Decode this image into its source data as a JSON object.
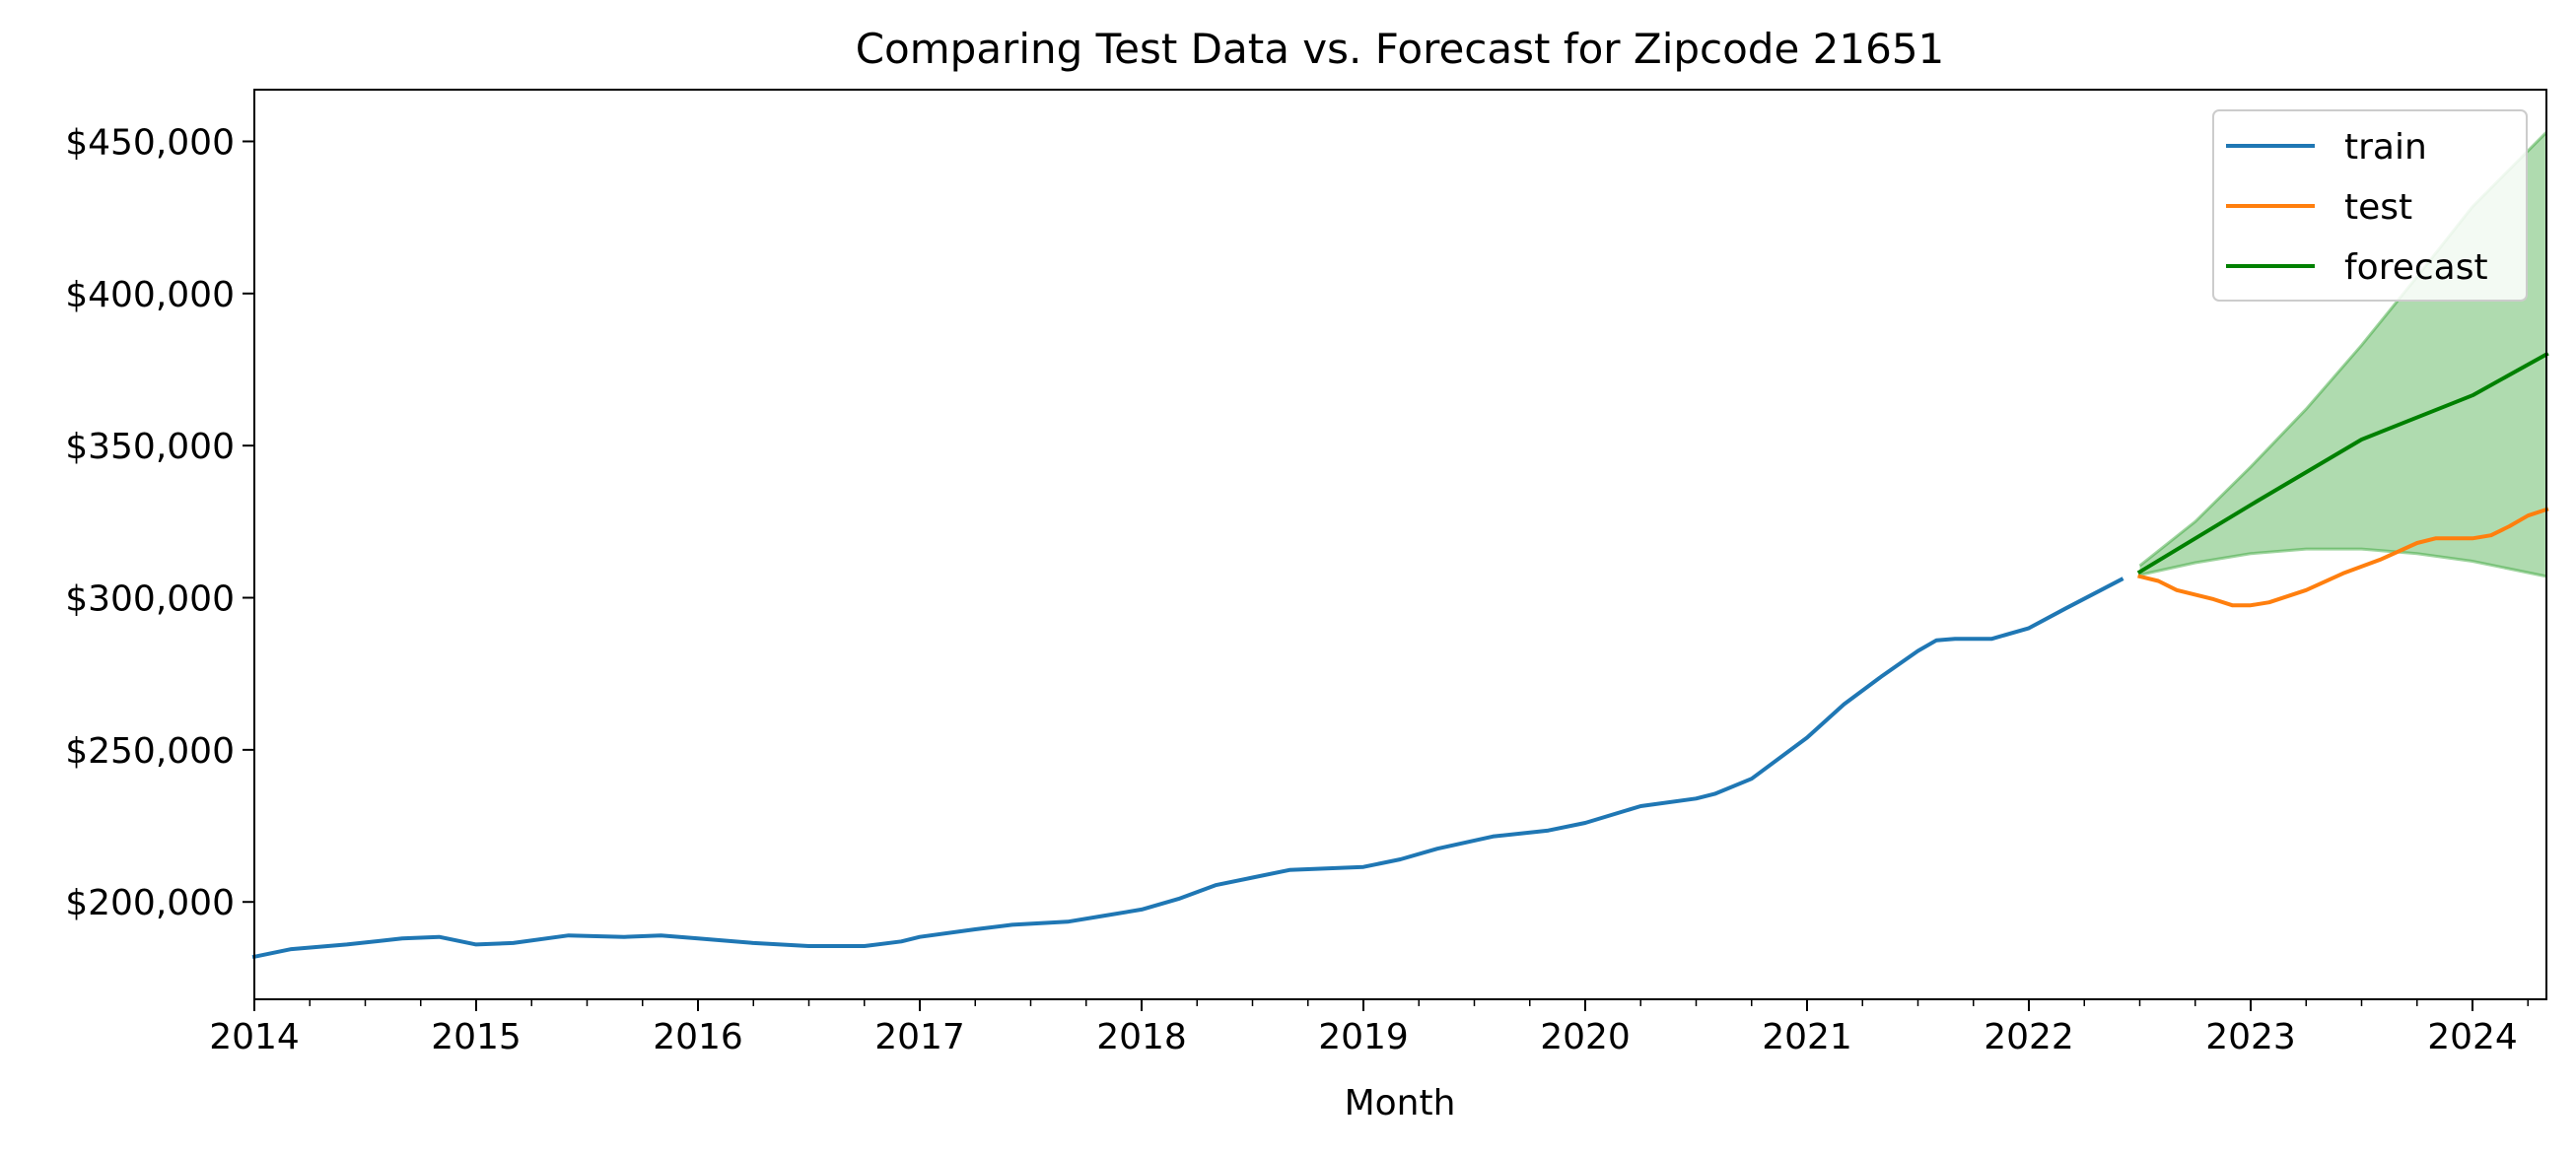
{
  "chart_data": {
    "type": "line",
    "title": "Comparing Test Data vs. Forecast for Zipcode 21651",
    "xlabel": "Month",
    "ylabel": "",
    "x_axis": "date",
    "xlim": [
      "2014-01",
      "2024-05"
    ],
    "ylim": [
      168000,
      467000
    ],
    "y_ticks": [
      200000,
      250000,
      300000,
      350000,
      400000,
      450000
    ],
    "y_tick_labels": [
      "$200,000",
      "$250,000",
      "$300,000",
      "$350,000",
      "$400,000",
      "$450,000"
    ],
    "x_ticks": [
      "2014-01",
      "2015-01",
      "2016-01",
      "2017-01",
      "2018-01",
      "2019-01",
      "2020-01",
      "2021-01",
      "2022-01",
      "2023-01",
      "2024-01"
    ],
    "x_tick_labels": [
      "2014",
      "2015",
      "2016",
      "2017",
      "2018",
      "2019",
      "2020",
      "2021",
      "2022",
      "2023",
      "2024"
    ],
    "grid": false,
    "legend_position": "top-right",
    "series": [
      {
        "name": "train",
        "color": "#1f77b4",
        "points": [
          [
            "2014-01",
            182000
          ],
          [
            "2014-03",
            184500
          ],
          [
            "2014-06",
            186000
          ],
          [
            "2014-09",
            188000
          ],
          [
            "2014-11",
            188500
          ],
          [
            "2015-01",
            186000
          ],
          [
            "2015-03",
            186500
          ],
          [
            "2015-06",
            189000
          ],
          [
            "2015-09",
            188500
          ],
          [
            "2015-11",
            189000
          ],
          [
            "2016-01",
            188000
          ],
          [
            "2016-04",
            186500
          ],
          [
            "2016-07",
            185500
          ],
          [
            "2016-10",
            185500
          ],
          [
            "2016-12",
            187000
          ],
          [
            "2017-01",
            188500
          ],
          [
            "2017-04",
            191000
          ],
          [
            "2017-06",
            192500
          ],
          [
            "2017-09",
            193500
          ],
          [
            "2017-11",
            195500
          ],
          [
            "2018-01",
            197500
          ],
          [
            "2018-03",
            201000
          ],
          [
            "2018-05",
            205500
          ],
          [
            "2018-07",
            208000
          ],
          [
            "2018-09",
            210500
          ],
          [
            "2018-11",
            211000
          ],
          [
            "2019-01",
            211500
          ],
          [
            "2019-03",
            214000
          ],
          [
            "2019-05",
            217500
          ],
          [
            "2019-08",
            221500
          ],
          [
            "2019-11",
            223500
          ],
          [
            "2020-01",
            226000
          ],
          [
            "2020-04",
            231500
          ],
          [
            "2020-07",
            234000
          ],
          [
            "2020-08",
            235500
          ],
          [
            "2020-10",
            240500
          ],
          [
            "2021-01",
            254000
          ],
          [
            "2021-03",
            265000
          ],
          [
            "2021-05",
            274000
          ],
          [
            "2021-07",
            282500
          ],
          [
            "2021-08",
            286000
          ],
          [
            "2021-09",
            286500
          ],
          [
            "2021-11",
            286500
          ],
          [
            "2022-01",
            290000
          ],
          [
            "2022-03",
            296500
          ],
          [
            "2022-06",
            306000
          ]
        ]
      },
      {
        "name": "test",
        "color": "#ff7f0e",
        "points": [
          [
            "2022-07",
            307000
          ],
          [
            "2022-08",
            305500
          ],
          [
            "2022-09",
            302500
          ],
          [
            "2022-11",
            299500
          ],
          [
            "2022-12",
            297500
          ],
          [
            "2023-01",
            297500
          ],
          [
            "2023-02",
            298500
          ],
          [
            "2023-04",
            302500
          ],
          [
            "2023-06",
            308000
          ],
          [
            "2023-08",
            312500
          ],
          [
            "2023-10",
            318000
          ],
          [
            "2023-11",
            319500
          ],
          [
            "2024-01",
            319500
          ],
          [
            "2024-02",
            320500
          ],
          [
            "2024-03",
            323500
          ],
          [
            "2024-04",
            327000
          ],
          [
            "2024-05",
            329000
          ]
        ]
      },
      {
        "name": "forecast",
        "color": "#008000",
        "points": [
          [
            "2022-07",
            308500
          ],
          [
            "2023-01",
            330500
          ],
          [
            "2023-07",
            352000
          ],
          [
            "2024-01",
            366500
          ],
          [
            "2024-05",
            380000
          ]
        ],
        "confidence_band": {
          "color": "#2ca02c",
          "upper": [
            [
              "2022-07",
              310500
            ],
            [
              "2022-10",
              325000
            ],
            [
              "2023-01",
              343000
            ],
            [
              "2023-04",
              362000
            ],
            [
              "2023-07",
              383000
            ],
            [
              "2023-10",
              405500
            ],
            [
              "2024-01",
              428500
            ],
            [
              "2024-05",
              453000
            ]
          ],
          "lower": [
            [
              "2022-07",
              307500
            ],
            [
              "2022-10",
              311500
            ],
            [
              "2023-01",
              314500
            ],
            [
              "2023-04",
              316000
            ],
            [
              "2023-07",
              316000
            ],
            [
              "2023-10",
              314500
            ],
            [
              "2024-01",
              312000
            ],
            [
              "2024-05",
              307000
            ]
          ]
        }
      }
    ]
  }
}
